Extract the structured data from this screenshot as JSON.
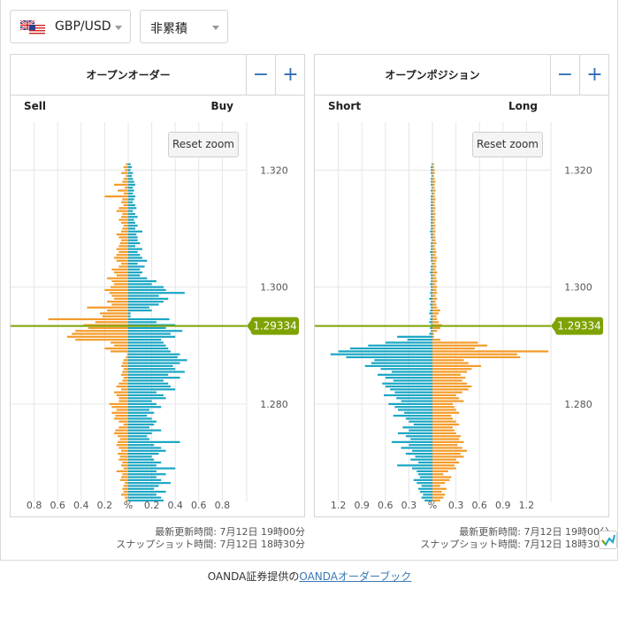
{
  "header": {
    "pair_label": "GBP/USD",
    "mode_label": "非累積",
    "icons": [
      "uk-flag-icon",
      "us-flag-icon",
      "chevron-down-icon"
    ]
  },
  "colors": {
    "sell_short": "#f49b2a",
    "buy_long": "#1aa6c4",
    "price_line": "#7ea300",
    "grid": "#e6e6e6",
    "button_blue": "#2f6db5"
  },
  "panels": [
    {
      "title": "オープンオーダー",
      "minus_label": "−",
      "plus_label": "+",
      "left_label": "Sell",
      "right_label": "Buy",
      "reset_label": "Reset zoom",
      "updated": "最新更新時間: 7月12日 19時00分",
      "snapshot": "スナップショット時間: 7月12日 18時30分"
    },
    {
      "title": "オープンポジション",
      "minus_label": "−",
      "plus_label": "+",
      "left_label": "Short",
      "right_label": "Long",
      "reset_label": "Reset zoom",
      "updated": "最新更新時間: 7月12日 19時00分",
      "snapshot": "スナップショット時間: 7月12日 18時30分"
    }
  ],
  "credit": {
    "prefix": "OANDA証券提供の",
    "link": "OANDAオーダーブック"
  },
  "chart_data": [
    {
      "type": "bar",
      "orientation": "horizontal",
      "title": "オープンオーダー",
      "price_ticks": [
        "1.320",
        "1.300",
        "1.280"
      ],
      "current_price": "1.29334",
      "x_ticks": [
        "0.8",
        "0.6",
        "0.4",
        "0.2",
        "%",
        "0.2",
        "0.4",
        "0.6",
        "0.8"
      ],
      "xlim": [
        -1.0,
        1.0
      ],
      "ylim": [
        1.2632,
        1.3258
      ],
      "price_step": 0.0005,
      "price_start": 1.2635,
      "sell": [
        0.02,
        0.03,
        0.06,
        0.04,
        0.05,
        0.04,
        0.03,
        0.07,
        0.06,
        0.05,
        0.1,
        0.04,
        0.06,
        0.05,
        0.08,
        0.07,
        0.09,
        0.06,
        0.08,
        0.1,
        0.09,
        0.07,
        0.09,
        0.12,
        0.11,
        0.08,
        0.04,
        0.08,
        0.12,
        0.11,
        0.14,
        0.1,
        0.14,
        0.16,
        0.08,
        0.08,
        0.1,
        0.12,
        0.06,
        0.1,
        0.08,
        0.05,
        0.04,
        0.06,
        0.05,
        0.04,
        0.06,
        0.05,
        0.04,
        0.02,
        0.01,
        0.15,
        0.2,
        0.12,
        0.15,
        0.45,
        0.52,
        0.48,
        0.45,
        0.34,
        0.38,
        0.28,
        0.68,
        0.22,
        0.24,
        0.18,
        0.35,
        0.14,
        0.18,
        0.12,
        0.14,
        0.16,
        0.2,
        0.15,
        0.12,
        0.14,
        0.18,
        0.1,
        0.12,
        0.14,
        0.08,
        0.06,
        0.1,
        0.12,
        0.1,
        0.08,
        0.1,
        0.08,
        0.07,
        0.06,
        0.08,
        0.1,
        0.06,
        0.05,
        0.04,
        0.06,
        0.08,
        0.06,
        0.05,
        0.1,
        0.08,
        0.04,
        0.06,
        0.05,
        0.2,
        0.04,
        0.09,
        0.03,
        0.12,
        0.05,
        0.04,
        0.02,
        0.06,
        0.03,
        0.04,
        0.02
      ],
      "buy": [
        0.3,
        0.28,
        0.24,
        0.32,
        0.22,
        0.26,
        0.36,
        0.28,
        0.24,
        0.32,
        0.24,
        0.4,
        0.24,
        0.28,
        0.22,
        0.2,
        0.26,
        0.32,
        0.28,
        0.22,
        0.44,
        0.18,
        0.16,
        0.2,
        0.28,
        0.18,
        0.22,
        0.24,
        0.2,
        0.16,
        0.22,
        0.18,
        0.28,
        0.24,
        0.2,
        0.32,
        0.3,
        0.24,
        0.4,
        0.36,
        0.34,
        0.3,
        0.44,
        0.34,
        0.48,
        0.4,
        0.38,
        0.44,
        0.5,
        0.42,
        0.44,
        0.36,
        0.34,
        0.32,
        0.3,
        0.28,
        0.4,
        0.36,
        0.46,
        0.32,
        0.4,
        0.24,
        0.35,
        0.02,
        0.02,
        0.2,
        0.18,
        0.26,
        0.3,
        0.34,
        0.26,
        0.48,
        0.32,
        0.3,
        0.2,
        0.24,
        0.16,
        0.1,
        0.12,
        0.1,
        0.14,
        0.08,
        0.16,
        0.12,
        0.1,
        0.08,
        0.12,
        0.06,
        0.1,
        0.08,
        0.08,
        0.07,
        0.12,
        0.06,
        0.08,
        0.06,
        0.05,
        0.08,
        0.06,
        0.04,
        0.07,
        0.06,
        0.04,
        0.05,
        0.06,
        0.04,
        0.05,
        0.04,
        0.06,
        0.05,
        0.04,
        0.03,
        0.04,
        0.02,
        0.03,
        0.02
      ],
      "buy_offset": [
        0,
        0,
        0,
        0,
        0,
        0,
        0,
        0,
        0,
        0,
        0,
        0,
        0,
        0,
        0,
        0,
        0,
        0,
        0,
        0,
        0,
        0,
        0,
        0,
        0,
        0,
        0,
        0,
        0,
        0,
        0,
        0,
        0,
        0,
        0,
        0,
        0,
        0,
        0,
        0,
        0,
        0,
        0,
        0,
        0,
        0,
        0,
        0,
        0,
        0,
        0,
        0,
        0,
        0,
        0,
        0,
        0,
        0,
        0,
        0,
        0,
        0,
        0,
        0,
        0,
        0,
        0,
        0,
        0,
        0,
        0,
        0,
        0,
        0,
        0,
        0,
        0,
        0,
        0,
        0,
        0,
        0,
        0,
        0,
        0,
        0,
        0,
        0,
        0,
        0,
        0,
        0,
        0,
        0,
        0,
        0,
        0,
        0,
        0,
        0,
        0,
        0,
        0,
        0,
        0,
        0,
        0,
        0,
        0,
        0,
        0,
        0,
        0,
        0,
        0,
        0
      ]
    },
    {
      "type": "bar",
      "orientation": "horizontal",
      "title": "オープンポジション",
      "price_ticks": [
        "1.320",
        "1.300",
        "1.280"
      ],
      "current_price": "1.29334",
      "x_ticks": [
        "1.2",
        "0.9",
        "0.6",
        "0.3",
        "%",
        "0.3",
        "0.6",
        "0.9",
        "1.2"
      ],
      "xlim": [
        -1.5,
        1.5
      ],
      "ylim": [
        1.2632,
        1.3258
      ],
      "price_step": 0.0005,
      "price_start": 1.2635,
      "short": [
        0.1,
        0.14,
        0.12,
        0.16,
        0.18,
        0.14,
        0.2,
        0.24,
        0.16,
        0.18,
        0.2,
        0.26,
        0.45,
        0.18,
        0.28,
        0.22,
        0.34,
        0.26,
        0.4,
        0.3,
        0.52,
        0.28,
        0.34,
        0.44,
        0.3,
        0.38,
        0.24,
        0.3,
        0.34,
        0.5,
        0.36,
        0.44,
        0.48,
        0.56,
        0.4,
        0.46,
        0.62,
        0.48,
        0.54,
        0.6,
        0.64,
        0.5,
        0.6,
        0.7,
        0.52,
        0.66,
        0.86,
        0.78,
        0.74,
        1.1,
        1.3,
        1.2,
        1.05,
        0.82,
        0.6,
        0.32,
        0.45,
        0.04,
        0.02,
        0.03,
        0.02,
        0.04,
        0.03,
        0.02,
        0.04,
        0.03,
        0.02,
        0.03,
        0.02,
        0.04,
        0.02,
        0.03,
        0.02,
        0.02,
        0.03,
        0.02,
        0.02,
        0.02,
        0.03,
        0.02,
        0.02,
        0.01,
        0.02,
        0.02,
        0.02,
        0.03,
        0.02,
        0.02,
        0.02,
        0.01,
        0.02,
        0.02,
        0.03,
        0.02,
        0.02,
        0.02,
        0.02,
        0.02,
        0.02,
        0.02,
        0.02,
        0.02,
        0.02,
        0.02,
        0.02,
        0.01,
        0.02,
        0.01,
        0.02,
        0.02,
        0.02,
        0.01,
        0.02,
        0.02,
        0.02,
        0.01
      ],
      "long": [
        0.1,
        0.14,
        0.16,
        0.12,
        0.18,
        0.1,
        0.16,
        0.22,
        0.24,
        0.14,
        0.2,
        0.3,
        0.28,
        0.34,
        0.3,
        0.4,
        0.36,
        0.44,
        0.38,
        0.32,
        0.4,
        0.34,
        0.36,
        0.3,
        0.28,
        0.26,
        0.34,
        0.3,
        0.26,
        0.24,
        0.34,
        0.3,
        0.28,
        0.26,
        0.4,
        0.34,
        0.3,
        0.38,
        0.46,
        0.5,
        0.44,
        0.38,
        0.42,
        0.36,
        0.44,
        0.5,
        0.62,
        0.46,
        0.4,
        1.12,
        1.08,
        1.48,
        0.54,
        0.7,
        0.58,
        0.1,
        0.02,
        0.02,
        0.06,
        0.1,
        0.12,
        0.08,
        0.06,
        0.05,
        0.08,
        0.1,
        0.06,
        0.05,
        0.04,
        0.06,
        0.04,
        0.06,
        0.05,
        0.06,
        0.04,
        0.06,
        0.05,
        0.04,
        0.06,
        0.04,
        0.05,
        0.04,
        0.05,
        0.06,
        0.04,
        0.05,
        0.04,
        0.03,
        0.05,
        0.04,
        0.04,
        0.03,
        0.04,
        0.03,
        0.04,
        0.03,
        0.04,
        0.03,
        0.04,
        0.03,
        0.04,
        0.03,
        0.03,
        0.04,
        0.03,
        0.03,
        0.04,
        0.03,
        0.03,
        0.04,
        0.03,
        0.02,
        0.03,
        0.03,
        0.02,
        0.02
      ]
    }
  ]
}
